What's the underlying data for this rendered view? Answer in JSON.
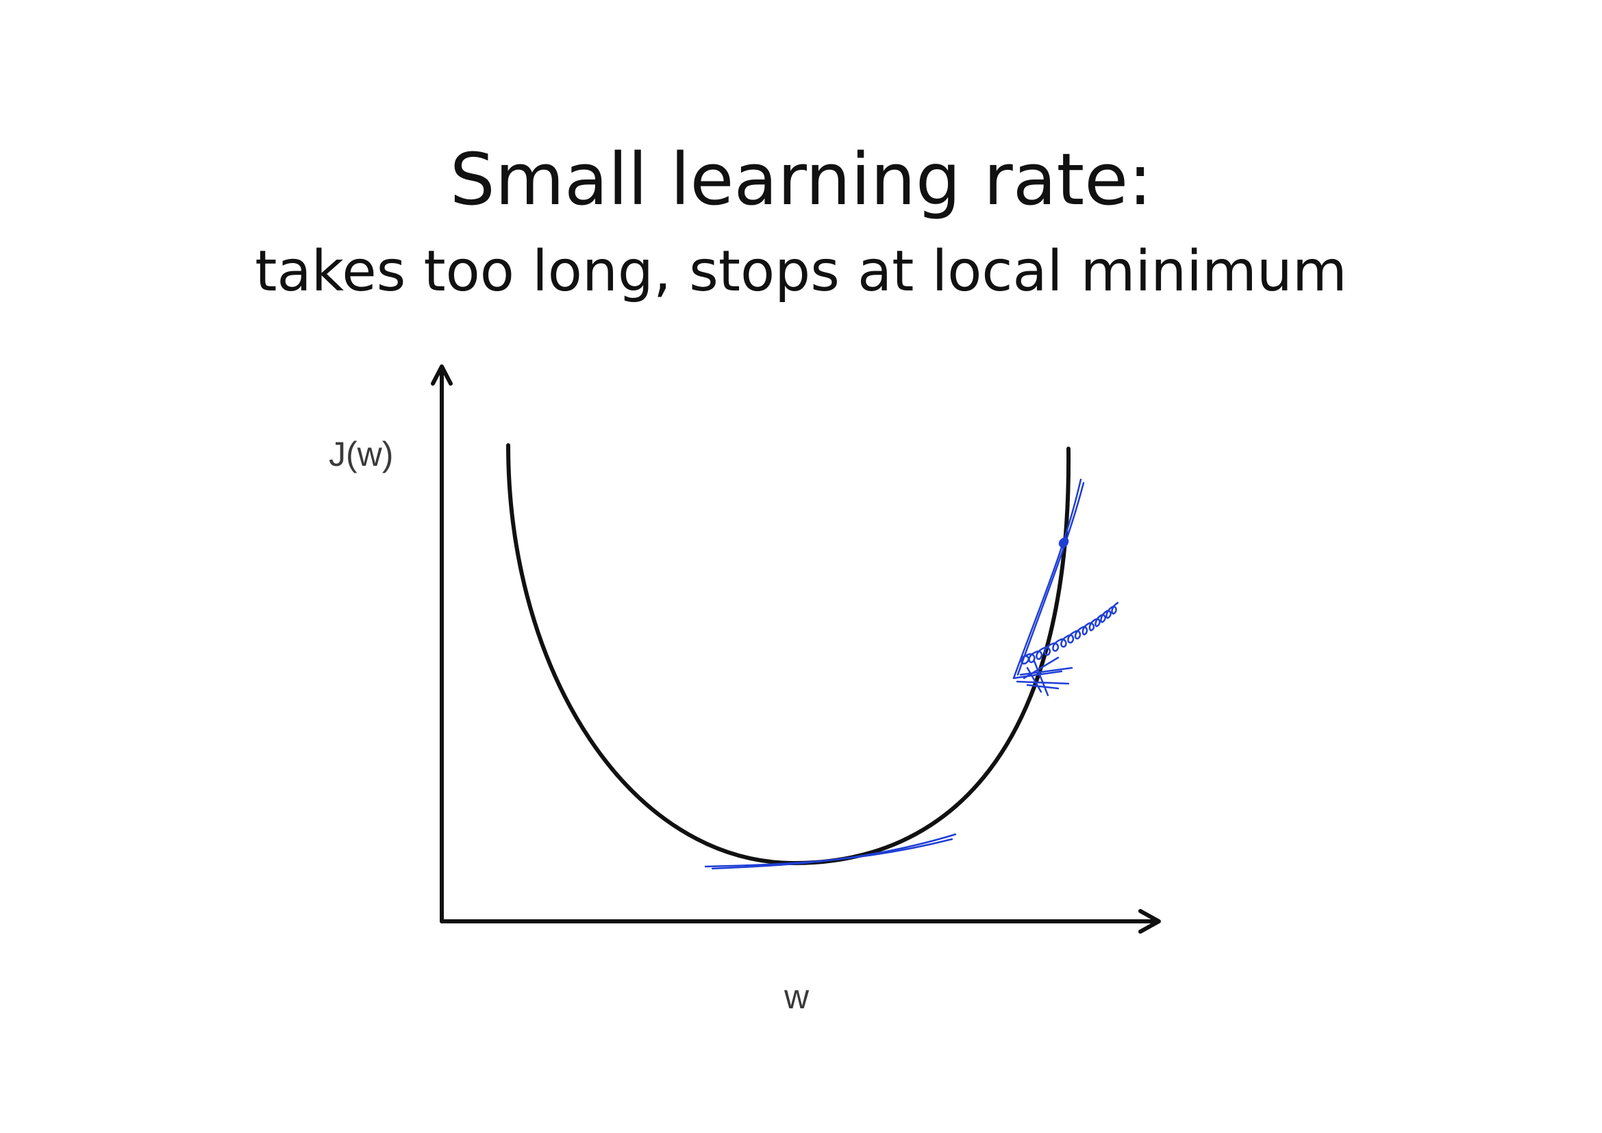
{
  "slide": {
    "title": "Small learning rate:",
    "subtitle": "takes too long, stops at local minimum"
  },
  "diagram": {
    "y_axis_label": "J(w)",
    "x_axis_label": "w",
    "colors": {
      "curve": "#111111",
      "axes": "#111111",
      "annotation_ink": "#1f3fd6"
    }
  }
}
